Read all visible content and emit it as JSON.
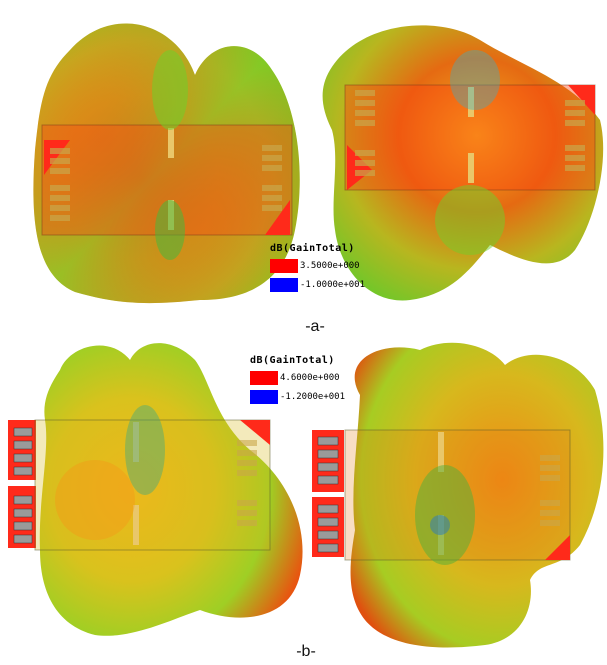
{
  "figure": {
    "caption_a": "-a-",
    "caption_b": "-b-"
  },
  "legend_a": {
    "title": "dB(GainTotal)",
    "max_value": "3.5000e+000",
    "min_value": "-1.0000e+001",
    "max_color": "#ff0000",
    "min_color": "#0000ff"
  },
  "legend_b": {
    "title": "dB(GainTotal)",
    "max_value": "4.6000e+000",
    "min_value": "-1.2000e+001",
    "max_color": "#ff0000",
    "min_color": "#0000ff"
  },
  "colors": {
    "high": "#e63b12",
    "mid": "#f2a11a",
    "low": "#5dc21f",
    "board": "#ff2a1a",
    "pad": "#9a9a9a"
  }
}
